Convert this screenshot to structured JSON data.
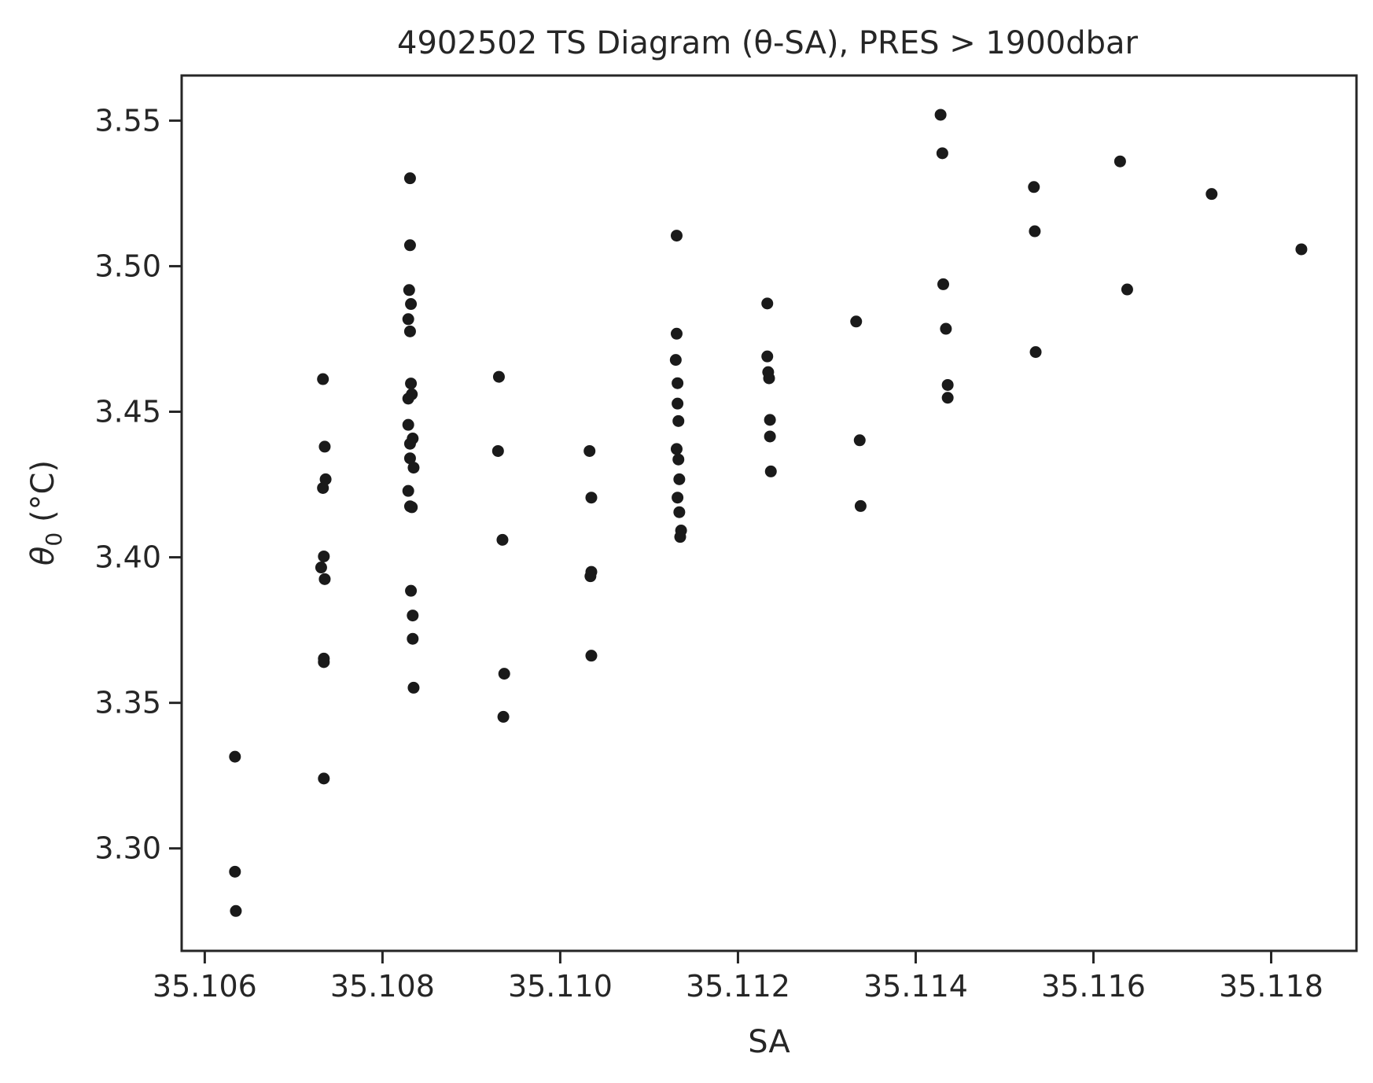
{
  "chart_data": {
    "type": "scatter",
    "title": "4902502 TS Diagram (θ-SA), PRES > 1900dbar",
    "xlabel": "SA",
    "ylabel_symbol": "θ",
    "ylabel_subscript": "0",
    "ylabel_unit": " (°C)",
    "xlim": [
      35.10574,
      35.11896
    ],
    "ylim": [
      3.2648,
      3.5655
    ],
    "xticks": [
      35.106,
      35.108,
      35.11,
      35.112,
      35.114,
      35.116,
      35.118
    ],
    "xtick_labels": [
      "35.106",
      "35.108",
      "35.110",
      "35.112",
      "35.114",
      "35.116",
      "35.118"
    ],
    "yticks": [
      3.3,
      3.35,
      3.4,
      3.45,
      3.5,
      3.55
    ],
    "ytick_labels": [
      "3.30",
      "3.35",
      "3.40",
      "3.45",
      "3.50",
      "3.55"
    ],
    "grid": false,
    "marker_color": "#1a1a1a",
    "points": [
      [
        35.10634,
        3.3315
      ],
      [
        35.10634,
        3.292
      ],
      [
        35.10635,
        3.2785
      ],
      [
        35.10733,
        3.4612
      ],
      [
        35.10735,
        3.438
      ],
      [
        35.10736,
        3.4268
      ],
      [
        35.10733,
        3.4238
      ],
      [
        35.10734,
        3.4003
      ],
      [
        35.10731,
        3.3965
      ],
      [
        35.10735,
        3.3925
      ],
      [
        35.10734,
        3.3652
      ],
      [
        35.10734,
        3.364
      ],
      [
        35.10734,
        3.324
      ],
      [
        35.10831,
        3.5302
      ],
      [
        35.10831,
        3.5072
      ],
      [
        35.1083,
        3.4918
      ],
      [
        35.10832,
        3.487
      ],
      [
        35.10829,
        3.4818
      ],
      [
        35.10831,
        3.4776
      ],
      [
        35.10832,
        3.4597
      ],
      [
        35.10833,
        3.456
      ],
      [
        35.10829,
        3.4545
      ],
      [
        35.10829,
        3.4455
      ],
      [
        35.10834,
        3.4408
      ],
      [
        35.10831,
        3.439
      ],
      [
        35.10831,
        3.434
      ],
      [
        35.10835,
        3.4308
      ],
      [
        35.10829,
        3.4228
      ],
      [
        35.10831,
        3.4175
      ],
      [
        35.10833,
        3.4172
      ],
      [
        35.10832,
        3.3885
      ],
      [
        35.10834,
        3.38
      ],
      [
        35.10834,
        3.372
      ],
      [
        35.10835,
        3.3552
      ],
      [
        35.10931,
        3.462
      ],
      [
        35.1093,
        3.4365
      ],
      [
        35.10935,
        3.406
      ],
      [
        35.10937,
        3.36
      ],
      [
        35.10936,
        3.3452
      ],
      [
        35.11033,
        3.4365
      ],
      [
        35.11035,
        3.4205
      ],
      [
        35.11035,
        3.395
      ],
      [
        35.11034,
        3.3935
      ],
      [
        35.11035,
        3.3662
      ],
      [
        35.11131,
        3.5105
      ],
      [
        35.11131,
        3.4768
      ],
      [
        35.1113,
        3.4678
      ],
      [
        35.11132,
        3.4598
      ],
      [
        35.11132,
        3.4528
      ],
      [
        35.11133,
        3.4468
      ],
      [
        35.11131,
        3.4372
      ],
      [
        35.11133,
        3.4336
      ],
      [
        35.11134,
        3.4268
      ],
      [
        35.11132,
        3.4205
      ],
      [
        35.11134,
        3.4155
      ],
      [
        35.11136,
        3.4092
      ],
      [
        35.11135,
        3.407
      ],
      [
        35.11233,
        3.4872
      ],
      [
        35.11233,
        3.469
      ],
      [
        35.11234,
        3.4636
      ],
      [
        35.11235,
        3.4615
      ],
      [
        35.11236,
        3.4472
      ],
      [
        35.11236,
        3.4415
      ],
      [
        35.11237,
        3.4295
      ],
      [
        35.11333,
        3.481
      ],
      [
        35.11337,
        3.4402
      ],
      [
        35.11338,
        3.4176
      ],
      [
        35.11428,
        3.552
      ],
      [
        35.1143,
        3.5388
      ],
      [
        35.11431,
        3.4938
      ],
      [
        35.11434,
        3.4785
      ],
      [
        35.11436,
        3.4592
      ],
      [
        35.11436,
        3.4548
      ],
      [
        35.11533,
        3.5272
      ],
      [
        35.11534,
        3.512
      ],
      [
        35.11535,
        3.4705
      ],
      [
        35.1163,
        3.536
      ],
      [
        35.11638,
        3.492
      ],
      [
        35.11733,
        3.5248
      ],
      [
        35.11834,
        3.5058
      ]
    ]
  }
}
